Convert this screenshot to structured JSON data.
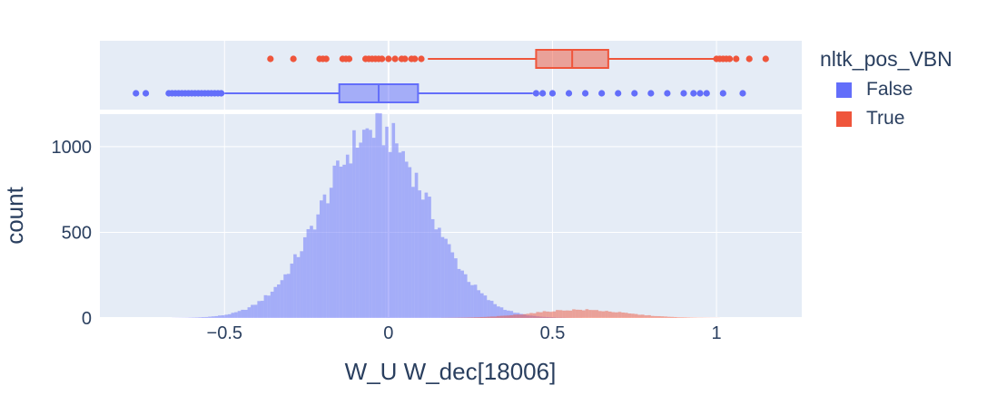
{
  "chart_data": {
    "type": "histogram",
    "subplots": [
      "marginal-box",
      "histogram"
    ],
    "xlabel": "W_U W_dec[18006]",
    "ylabel": "count",
    "xlim": [
      -0.88,
      1.26
    ],
    "ylim": [
      0,
      1190
    ],
    "x_ticks": [
      -0.5,
      0,
      0.5,
      1
    ],
    "x_tick_labels": [
      "−0.5",
      "0",
      "0.5",
      "1"
    ],
    "y_ticks": [
      0,
      500,
      1000
    ],
    "y_tick_labels": [
      "0",
      "500",
      "1000"
    ],
    "grid": true,
    "legend": {
      "title": "nltk_pos_VBN",
      "placement": "right",
      "entries": [
        "False",
        "True"
      ]
    },
    "series": [
      {
        "name": "False",
        "color": "#636efa",
        "box": {
          "q1": -0.15,
          "median": -0.03,
          "q3": 0.09,
          "lower_fence": -0.5,
          "upper_fence": 0.44
        },
        "outliers": [
          -0.77,
          -0.74,
          -0.67,
          -0.66,
          -0.65,
          -0.64,
          -0.63,
          -0.62,
          -0.61,
          -0.6,
          -0.59,
          -0.58,
          -0.57,
          -0.56,
          -0.55,
          -0.54,
          -0.53,
          -0.52,
          -0.51,
          0.45,
          0.47,
          0.5,
          0.55,
          0.6,
          0.65,
          0.7,
          0.75,
          0.8,
          0.85,
          0.9,
          0.93,
          0.95,
          0.97,
          1.02,
          1.08
        ],
        "hist": {
          "mean": -0.04,
          "sd": 0.16,
          "peak": 1100,
          "xmin": -0.66,
          "xmax": 0.97,
          "bin_width": 0.01
        }
      },
      {
        "name": "True",
        "color": "#ef553b",
        "box": {
          "q1": 0.45,
          "median": 0.56,
          "q3": 0.67,
          "lower_fence": 0.12,
          "upper_fence": 1.0
        },
        "outliers": [
          -0.36,
          -0.29,
          -0.21,
          -0.2,
          -0.19,
          -0.14,
          -0.13,
          -0.12,
          -0.07,
          -0.06,
          -0.05,
          -0.04,
          -0.03,
          -0.02,
          0.0,
          0.02,
          0.04,
          0.05,
          0.07,
          0.08,
          0.1,
          1.0,
          1.01,
          1.02,
          1.03,
          1.04,
          1.06,
          1.1,
          1.15
        ],
        "hist": {
          "mean": 0.58,
          "sd": 0.14,
          "peak": 48,
          "xmin": 0.12,
          "xmax": 1.12,
          "bin_width": 0.01
        }
      }
    ]
  }
}
